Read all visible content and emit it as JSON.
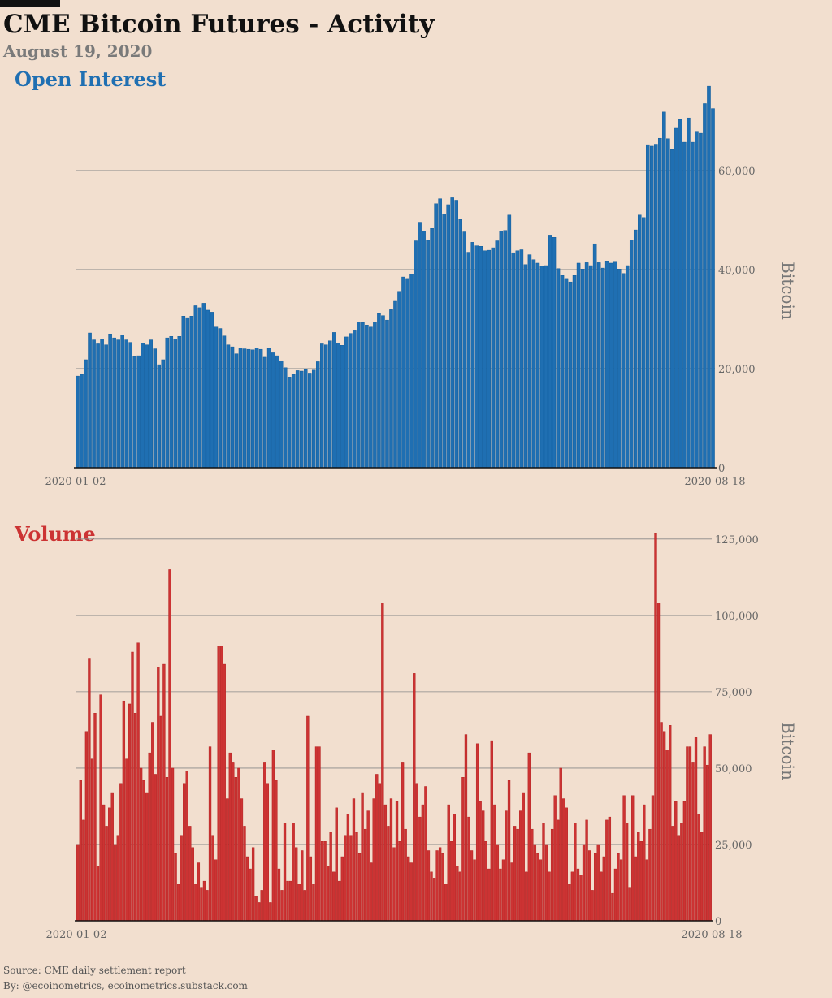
{
  "title": "CME Bitcoin Futures - Activity",
  "subtitle": "August 19, 2020",
  "footer": {
    "source": "Source: CME daily settlement report",
    "by": "By: @ecoinometrics, ecoinometrics.substack.com"
  },
  "colors": {
    "open_interest": "#1f6fb2",
    "volume": "#cc3333",
    "background": "#f2dfcf"
  },
  "chart_data": [
    {
      "type": "bar",
      "title": "Open Interest",
      "ylabel": "Bitcoin",
      "xlabel": "",
      "x_tick_labels": [
        "2020-01-02",
        "2020-08-18"
      ],
      "yticks": [
        0,
        20000,
        40000,
        60000
      ],
      "ytick_labels": [
        "0",
        "20,000",
        "40,000",
        "60,000"
      ],
      "ylim": [
        0,
        78000
      ],
      "grid": true,
      "values": [
        18500,
        18800,
        21800,
        27200,
        25800,
        25000,
        26000,
        24800,
        27000,
        26200,
        25800,
        26800,
        25800,
        25300,
        22400,
        22600,
        25200,
        24800,
        25800,
        24000,
        20800,
        21800,
        26200,
        26500,
        26000,
        26500,
        30600,
        30300,
        30600,
        32700,
        32300,
        33200,
        31800,
        31400,
        28400,
        28100,
        26600,
        24800,
        24400,
        23000,
        24200,
        24000,
        23900,
        23800,
        24200,
        23900,
        22300,
        24100,
        23200,
        22600,
        21600,
        20200,
        18300,
        18800,
        19600,
        19500,
        19800,
        19100,
        19700,
        21400,
        25000,
        24800,
        25600,
        27300,
        25200,
        24700,
        26400,
        27100,
        27800,
        29400,
        29300,
        28800,
        28400,
        29400,
        31100,
        30700,
        29800,
        31900,
        33600,
        35600,
        38500,
        38200,
        39100,
        45800,
        49400,
        47800,
        45900,
        48300,
        53300,
        54300,
        51200,
        53100,
        54500,
        54000,
        50100,
        47600,
        43500,
        45500,
        44800,
        44700,
        43800,
        43900,
        44400,
        45800,
        47800,
        47900,
        51000,
        43400,
        43800,
        44000,
        41000,
        43000,
        42000,
        41300,
        40700,
        40800,
        46800,
        46500,
        40200,
        38800,
        38200,
        37500,
        38800,
        41300,
        40100,
        41400,
        40800,
        45200,
        41400,
        40300,
        41600,
        41300,
        41500,
        40100,
        39200,
        40800,
        46000,
        48000,
        51000,
        50500,
        65200,
        64900,
        65300,
        66500,
        71800,
        66400,
        64200,
        68500,
        70300,
        65700,
        70600,
        65700,
        67900,
        67500,
        73500,
        77000,
        72500
      ]
    },
    {
      "type": "bar",
      "title": "Volume",
      "ylabel": "Bitcoin",
      "xlabel": "",
      "x_tick_labels": [
        "2020-01-02",
        "2020-08-18"
      ],
      "yticks": [
        0,
        25000,
        50000,
        75000,
        100000,
        125000
      ],
      "ytick_labels": [
        "0",
        "25,000",
        "50,000",
        "75,000",
        "100,000",
        "125,000"
      ],
      "ylim": [
        0,
        130000
      ],
      "grid": true,
      "values": [
        25000,
        46000,
        33000,
        62000,
        86000,
        53000,
        68000,
        18000,
        74000,
        38000,
        31000,
        37000,
        42000,
        25000,
        28000,
        45000,
        72000,
        53000,
        71000,
        88000,
        68000,
        91000,
        50000,
        46000,
        42000,
        55000,
        65000,
        48000,
        83000,
        67000,
        84000,
        47000,
        115000,
        50000,
        22000,
        12000,
        28000,
        45000,
        49000,
        31000,
        24000,
        12000,
        19000,
        11000,
        13000,
        10000,
        57000,
        28000,
        20000,
        90000,
        90000,
        84000,
        40000,
        55000,
        52000,
        47000,
        50000,
        40000,
        31000,
        21000,
        17000,
        24000,
        8000,
        6000,
        10000,
        52000,
        45000,
        6000,
        56000,
        46000,
        17000,
        10000,
        32000,
        13000,
        13000,
        32000,
        24000,
        12000,
        23000,
        10000,
        67000,
        21000,
        12000,
        57000,
        57000,
        26000,
        26000,
        18000,
        29000,
        16000,
        37000,
        13000,
        21000,
        28000,
        35000,
        28000,
        40000,
        29000,
        22000,
        42000,
        30000,
        36000,
        19000,
        40000,
        48000,
        45000,
        104000,
        38000,
        31000,
        40000,
        24000,
        39000,
        26000,
        52000,
        30000,
        21000,
        19000,
        81000,
        45000,
        34000,
        38000,
        44000,
        23000,
        16000,
        14000,
        23000,
        24000,
        22000,
        12000,
        38000,
        26000,
        35000,
        18000,
        16000,
        47000,
        61000,
        34000,
        23000,
        20000,
        58000,
        39000,
        36000,
        26000,
        17000,
        59000,
        38000,
        25000,
        17000,
        20000,
        36000,
        46000,
        19000,
        31000,
        30000,
        36000,
        42000,
        16000,
        55000,
        30000,
        25000,
        22000,
        20000,
        32000,
        25000,
        16000,
        30000,
        41000,
        33000,
        50000,
        40000,
        37000,
        12000,
        16000,
        32000,
        17000,
        15000,
        25000,
        33000,
        23000,
        10000,
        22000,
        25000,
        16000,
        21000,
        33000,
        34000,
        9000,
        17000,
        22000,
        20000,
        41000,
        32000,
        11000,
        41000,
        21000,
        29000,
        26000,
        38000,
        20000,
        30000,
        41000,
        127000,
        104000,
        65000,
        62000,
        56000,
        64000,
        31000,
        39000,
        28000,
        32000,
        39000,
        57000,
        57000,
        52000,
        60000,
        35000,
        29000,
        57000,
        51000,
        61000
      ]
    }
  ]
}
